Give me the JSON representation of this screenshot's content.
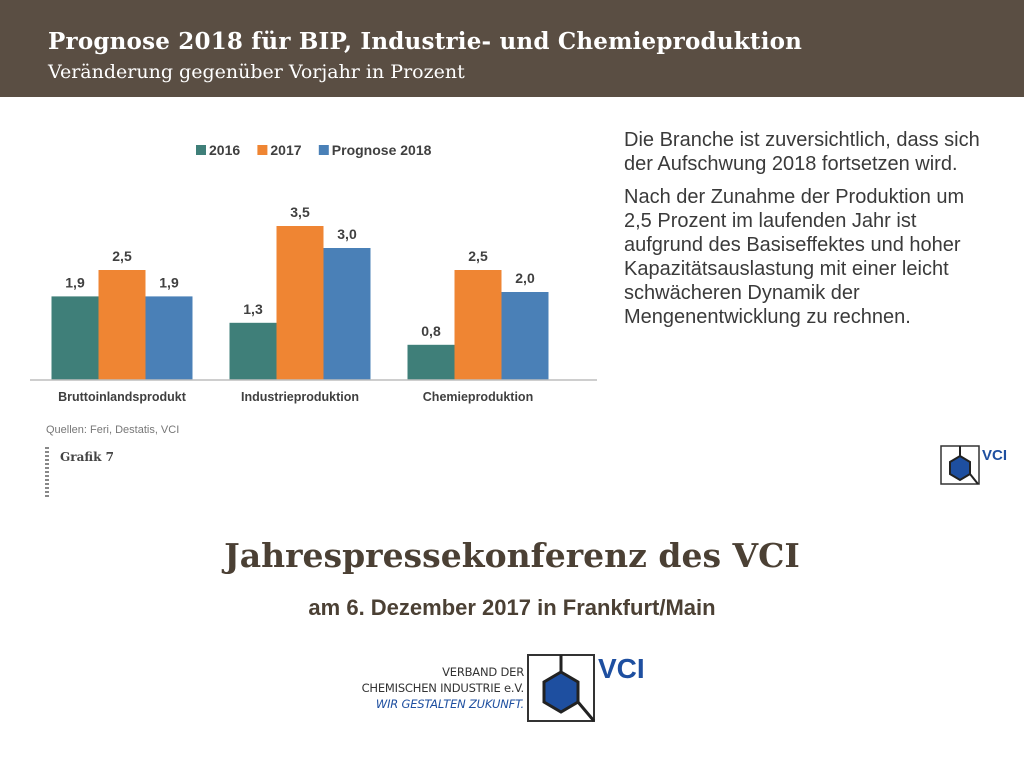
{
  "header": {
    "title": "Prognose 2018 für BIP, Industrie- und Chemieproduktion",
    "subtitle": "Veränderung gegenüber Vorjahr in Prozent"
  },
  "chart_data": {
    "type": "bar",
    "categories": [
      "Bruttoinlandsprodukt",
      "Industrieproduktion",
      "Chemieproduktion"
    ],
    "series": [
      {
        "name": "2016",
        "values": [
          1.9,
          1.3,
          0.8
        ],
        "labels": [
          "1,9",
          "1,3",
          "0,8"
        ],
        "color": "#3f7f79"
      },
      {
        "name": "2017",
        "values": [
          2.5,
          3.5,
          2.5
        ],
        "labels": [
          "2,5",
          "3,5",
          "2,5"
        ],
        "color": "#ef8533"
      },
      {
        "name": "Prognose 2018",
        "values": [
          1.9,
          3.0,
          2.0
        ],
        "labels": [
          "1,9",
          "3,0",
          "2,0"
        ],
        "color": "#4a80b7"
      }
    ],
    "title": "",
    "xlabel": "",
    "ylabel": "",
    "ylim": [
      0,
      4
    ],
    "grid": false,
    "legend": "top"
  },
  "source": "Quellen: Feri, Destatis, VCI",
  "grafik_label": "Grafik 7",
  "side_text": {
    "p1": "Die Branche ist zuversichtlich, dass sich der Aufschwung 2018 fortsetzen wird.",
    "p2": "Nach der Zunahme der Produktion um 2,5 Prozent im laufenden Jahr ist aufgrund des Basiseffektes und hoher Kapazitätsauslastung mit einer leicht schwächeren Dynamik der Mengenentwicklung zu rechnen."
  },
  "footer": {
    "title": "Jahrespressekonferenz des VCI",
    "date": "am 6. Dezember 2017 in Frankfurt/Main"
  },
  "org": {
    "line1": "VERBAND DER",
    "line2": "CHEMISCHEN INDUSTRIE e.V.",
    "tagline": "WIR GESTALTEN ZUKUNFT.",
    "logo_text": "VCI"
  },
  "colors": {
    "header_bg": "#5a4e43",
    "brand_blue": "#1e4fa0"
  }
}
